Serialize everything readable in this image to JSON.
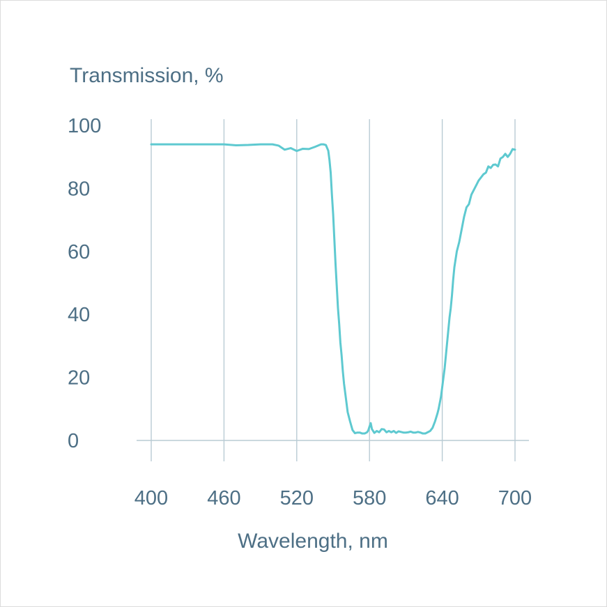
{
  "chart_data": {
    "type": "line",
    "title": "",
    "ylabel": "Transmission, %",
    "xlabel": "Wavelength, nm",
    "xlim": [
      400,
      700
    ],
    "ylim": [
      0,
      100
    ],
    "x_ticks": [
      400,
      460,
      520,
      580,
      640,
      700
    ],
    "y_ticks": [
      0,
      20,
      40,
      60,
      80,
      100
    ],
    "x_tick_labels": [
      "400",
      "460",
      "520",
      "580",
      "640",
      "700"
    ],
    "y_tick_labels": [
      "0",
      "20",
      "40",
      "60",
      "80",
      "100"
    ],
    "grid": "vertical",
    "legend": "none",
    "colors": {
      "series": "#5ec9d0",
      "axis": "#4d6f85",
      "grid": "#b9cbd4"
    },
    "series": [
      {
        "x": [
          400,
          410,
          420,
          430,
          440,
          450,
          460,
          470,
          480,
          490,
          500,
          505,
          510,
          515,
          520,
          525,
          530,
          535,
          540,
          542,
          544,
          546,
          547,
          548,
          549,
          550,
          551,
          552,
          553,
          554,
          555,
          556,
          557,
          558,
          559,
          560,
          562,
          564,
          566,
          568,
          570,
          572,
          574,
          576,
          578,
          579,
          580,
          581,
          582,
          584,
          586,
          588,
          590,
          592,
          594,
          596,
          598,
          600,
          602,
          604,
          606,
          608,
          610,
          612,
          614,
          616,
          618,
          620,
          622,
          624,
          626,
          628,
          630,
          632,
          634,
          636,
          637,
          638,
          639,
          640,
          641,
          642,
          643,
          644,
          645,
          646,
          647,
          648,
          649,
          650,
          652,
          654,
          656,
          658,
          660,
          662,
          664,
          666,
          668,
          670,
          672,
          674,
          676,
          678,
          680,
          682,
          684,
          686,
          688,
          690,
          692,
          694,
          696,
          698,
          700
        ],
        "values": [
          94,
          94,
          94,
          94,
          94,
          94,
          94,
          93.7,
          93.8,
          94,
          94,
          93.6,
          92.3,
          92.8,
          91.9,
          92.6,
          92.5,
          93.2,
          94,
          94,
          93.8,
          92,
          89,
          85,
          78,
          72,
          64,
          56,
          49,
          42,
          37,
          31,
          27,
          22,
          18,
          15,
          9,
          6,
          3.3,
          2.3,
          2.5,
          2.5,
          2.2,
          2.2,
          2.6,
          3.2,
          4.4,
          5.5,
          3.6,
          2.4,
          3,
          2.6,
          3.6,
          3.5,
          2.6,
          3,
          2.6,
          3,
          2.4,
          2.9,
          2.7,
          2.5,
          2.5,
          2.6,
          2.8,
          2.5,
          2.5,
          2.7,
          2.5,
          2.2,
          2.2,
          2.6,
          3,
          4,
          6,
          8.5,
          10,
          12,
          14,
          17,
          20,
          23,
          27,
          31,
          35,
          39,
          42,
          46,
          51,
          55,
          60,
          63,
          67,
          71,
          74,
          75,
          78,
          79.5,
          81,
          82.5,
          83.5,
          84.5,
          85,
          87,
          86.5,
          87.5,
          87.6,
          87,
          89.5,
          90,
          91,
          90,
          91,
          92.5,
          92.3
        ]
      }
    ]
  }
}
